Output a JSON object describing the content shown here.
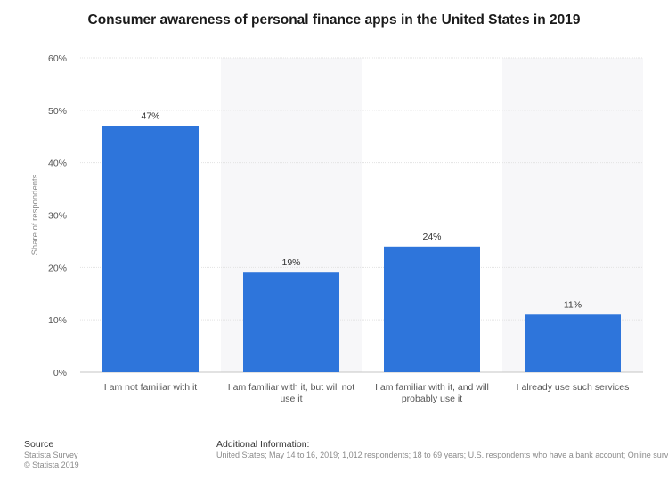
{
  "chart_data": {
    "type": "bar",
    "title": "Consumer awareness of personal finance apps in the United States in 2019",
    "xlabel": "",
    "ylabel": "Share of respondents",
    "ylim": [
      0,
      60
    ],
    "yticks": [
      "0%",
      "10%",
      "20%",
      "30%",
      "40%",
      "50%",
      "60%"
    ],
    "categories": [
      [
        "I am not familiar with it"
      ],
      [
        "I am familiar with it, but will not",
        "use it"
      ],
      [
        "I am familiar with it, and will",
        "probably use it"
      ],
      [
        "I already use such services"
      ]
    ],
    "values": [
      47,
      19,
      24,
      11
    ],
    "value_labels": [
      "47%",
      "19%",
      "24%",
      "11%"
    ],
    "bar_color": "#2e75db",
    "band_color": "#f7f7f9",
    "grid": true
  },
  "footer": {
    "source_heading": "Source",
    "source_lines": [
      "Statista Survey",
      "© Statista 2019"
    ],
    "additional_heading": "Additional Information:",
    "additional_text": "United States; May 14 to 16, 2019; 1,012 respondents; 18 to 69 years; U.S. respondents who have a bank account; Online survey"
  }
}
